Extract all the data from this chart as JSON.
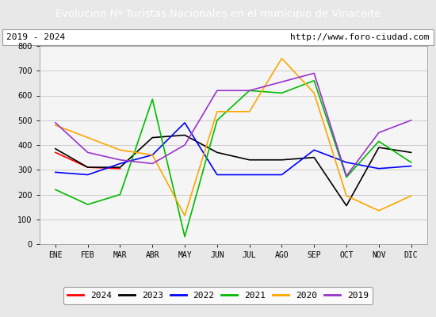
{
  "title": "Evolucion Nº Turistas Nacionales en el municipio de Vinaceite",
  "subtitle_left": "2019 - 2024",
  "subtitle_right": "http://www.foro-ciudad.com",
  "title_bg_color": "#4d7ebf",
  "title_text_color": "#ffffff",
  "months": [
    "ENE",
    "FEB",
    "MAR",
    "ABR",
    "MAY",
    "JUN",
    "JUL",
    "AGO",
    "SEP",
    "OCT",
    "NOV",
    "DIC"
  ],
  "ylim": [
    0,
    800
  ],
  "yticks": [
    0,
    100,
    200,
    300,
    400,
    500,
    600,
    700,
    800
  ],
  "series": {
    "2024": {
      "color": "#ff0000",
      "values": [
        370,
        310,
        305,
        null,
        null,
        null,
        null,
        null,
        null,
        null,
        null,
        null
      ]
    },
    "2023": {
      "color": "#000000",
      "values": [
        385,
        310,
        310,
        430,
        440,
        370,
        340,
        340,
        350,
        155,
        390,
        370
      ]
    },
    "2022": {
      "color": "#0000ff",
      "values": [
        290,
        280,
        325,
        360,
        490,
        280,
        280,
        280,
        380,
        330,
        305,
        315
      ]
    },
    "2021": {
      "color": "#00bb00",
      "values": [
        220,
        160,
        200,
        585,
        30,
        500,
        620,
        610,
        660,
        270,
        415,
        330
      ]
    },
    "2020": {
      "color": "#ffa500",
      "values": [
        480,
        430,
        380,
        360,
        115,
        535,
        535,
        750,
        610,
        195,
        135,
        195
      ]
    },
    "2019": {
      "color": "#9932cc",
      "values": [
        490,
        370,
        340,
        325,
        400,
        620,
        620,
        655,
        690,
        275,
        450,
        500
      ]
    }
  },
  "background_color": "#e8e8e8",
  "plot_area_color": "#f5f5f5",
  "grid_color": "#cccccc"
}
